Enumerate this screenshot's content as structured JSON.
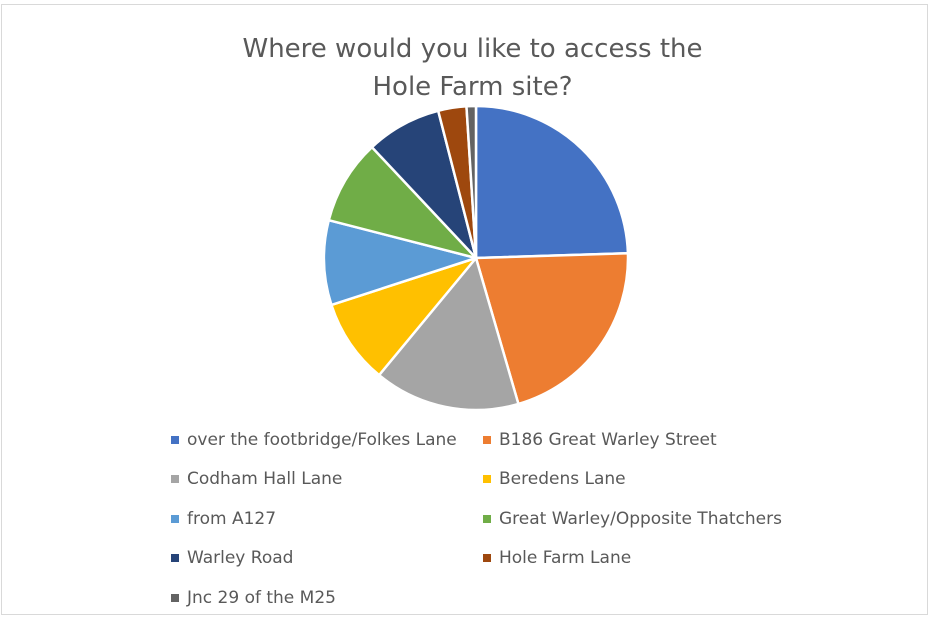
{
  "chart_data": {
    "type": "pie",
    "title": "Where would you like to access the Hole Farm site?",
    "title_lines": [
      "Where would you like to access the",
      "Hole Farm site?"
    ],
    "categories": [
      "over the footbridge/Folkes Lane",
      "B186 Great Warley Street",
      "Codham Hall Lane",
      "Beredens Lane",
      "from A127",
      "Great Warley/Opposite Thatchers",
      "Warley Road",
      "Hole Farm Lane",
      "Jnc 29 of the M25"
    ],
    "values": [
      24.5,
      21.0,
      15.5,
      9.0,
      9.0,
      9.0,
      8.0,
      3.0,
      1.0
    ],
    "colors": [
      "#4472C4",
      "#ED7D31",
      "#A5A5A5",
      "#FFC000",
      "#5B9BD5",
      "#70AD47",
      "#264478",
      "#9E480E",
      "#636363"
    ],
    "legend_position": "bottom"
  }
}
